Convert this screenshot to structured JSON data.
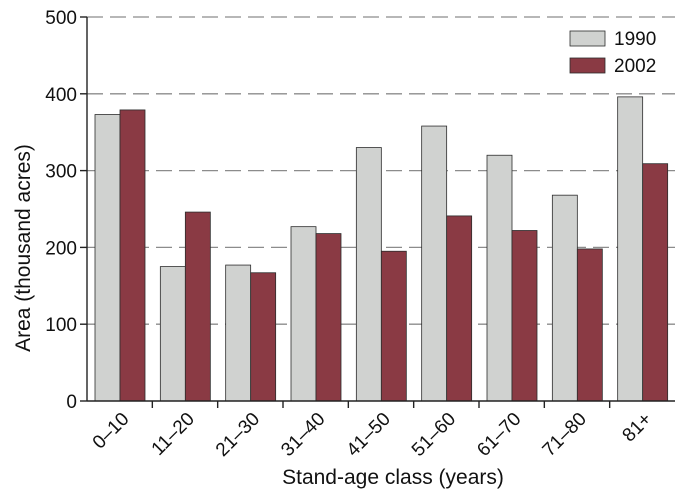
{
  "chart_data": {
    "type": "bar",
    "xlabel": "Stand-age class (years)",
    "ylabel": "Area (thousand acres)",
    "ylim": [
      0,
      500
    ],
    "yticks": [
      0,
      100,
      200,
      300,
      400,
      500
    ],
    "grid": true,
    "legend_position": "top-right",
    "categories": [
      "0–10",
      "11–20",
      "21–30",
      "31–40",
      "41–50",
      "51–60",
      "61–70",
      "71–80",
      "81+"
    ],
    "series": [
      {
        "name": "1990",
        "color": "#d0d2d0",
        "values": [
          373,
          175,
          177,
          227,
          330,
          358,
          320,
          268,
          396
        ]
      },
      {
        "name": "2002",
        "color": "#8a3a44",
        "values": [
          379,
          246,
          167,
          218,
          195,
          241,
          222,
          198,
          309
        ]
      }
    ]
  }
}
